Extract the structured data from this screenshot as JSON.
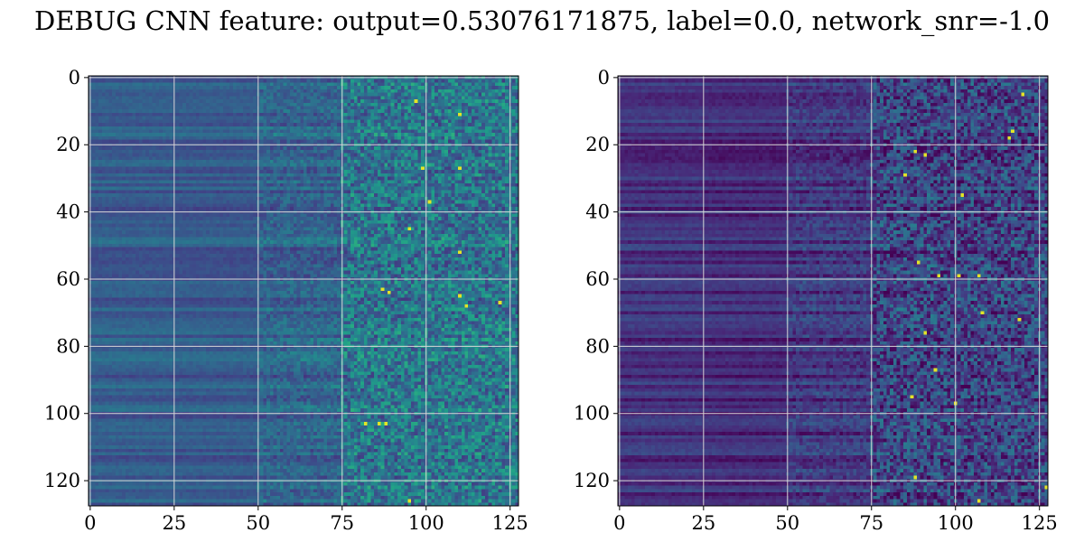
{
  "figure": {
    "title": "DEBUG CNN feature: output=0.53076171875, label=0.0, network_snr=-1.0"
  },
  "colormap": {
    "name": "viridis",
    "stops": [
      "#440154",
      "#482878",
      "#3e4989",
      "#31688e",
      "#26828e",
      "#1f9e89",
      "#35b779",
      "#6ece58",
      "#b5de2b",
      "#fde725"
    ]
  },
  "gridline_color": "#d8d8d8",
  "chart_data": [
    {
      "type": "heatmap",
      "panel": "left",
      "title": "",
      "xlabel": "",
      "ylabel": "",
      "rows": 128,
      "cols": 128,
      "xlim": [
        -0.5,
        127.5
      ],
      "ylim": [
        127.5,
        -0.5
      ],
      "xticks": [
        0,
        25,
        50,
        75,
        100,
        125
      ],
      "yticks": [
        0,
        20,
        40,
        60,
        80,
        100,
        120
      ],
      "grid": true,
      "colormap": "viridis",
      "column_band_mean": [
        {
          "cols": [
            0,
            25
          ],
          "mean": 0.3
        },
        {
          "cols": [
            25,
            50
          ],
          "mean": 0.29
        },
        {
          "cols": [
            50,
            75
          ],
          "mean": 0.33
        },
        {
          "cols": [
            75,
            128
          ],
          "mean": 0.4
        }
      ],
      "column_band_noise": [
        {
          "cols": [
            0,
            50
          ],
          "noise": 0.03
        },
        {
          "cols": [
            50,
            75
          ],
          "noise": 0.09
        },
        {
          "cols": [
            75,
            128
          ],
          "noise": 0.2
        }
      ],
      "bright_cells": [
        [
          7,
          97
        ],
        [
          11,
          110
        ],
        [
          27,
          99
        ],
        [
          27,
          110
        ],
        [
          37,
          101
        ],
        [
          45,
          95
        ],
        [
          52,
          110
        ],
        [
          63,
          87
        ],
        [
          64,
          89
        ],
        [
          65,
          110
        ],
        [
          67,
          122
        ],
        [
          68,
          112
        ],
        [
          103,
          82
        ],
        [
          103,
          86
        ],
        [
          103,
          88
        ],
        [
          126,
          95
        ]
      ]
    },
    {
      "type": "heatmap",
      "panel": "right",
      "title": "",
      "xlabel": "",
      "ylabel": "",
      "rows": 128,
      "cols": 128,
      "xlim": [
        -0.5,
        127.5
      ],
      "ylim": [
        127.5,
        -0.5
      ],
      "xticks": [
        0,
        25,
        50,
        75,
        100,
        125
      ],
      "yticks": [
        0,
        20,
        40,
        60,
        80,
        100,
        120
      ],
      "grid": true,
      "colormap": "viridis",
      "column_band_mean": [
        {
          "cols": [
            0,
            25
          ],
          "mean": 0.14
        },
        {
          "cols": [
            25,
            50
          ],
          "mean": 0.12
        },
        {
          "cols": [
            50,
            75
          ],
          "mean": 0.16
        },
        {
          "cols": [
            75,
            128
          ],
          "mean": 0.2
        }
      ],
      "column_band_noise": [
        {
          "cols": [
            0,
            50
          ],
          "noise": 0.03
        },
        {
          "cols": [
            50,
            75
          ],
          "noise": 0.08
        },
        {
          "cols": [
            75,
            128
          ],
          "noise": 0.2
        }
      ],
      "bright_cells": [
        [
          5,
          120
        ],
        [
          16,
          117
        ],
        [
          18,
          116
        ],
        [
          22,
          88
        ],
        [
          23,
          91
        ],
        [
          29,
          85
        ],
        [
          35,
          102
        ],
        [
          55,
          89
        ],
        [
          59,
          95
        ],
        [
          59,
          101
        ],
        [
          59,
          107
        ],
        [
          70,
          108
        ],
        [
          72,
          119
        ],
        [
          76,
          91
        ],
        [
          87,
          94
        ],
        [
          95,
          87
        ],
        [
          97,
          100
        ],
        [
          119,
          88
        ],
        [
          122,
          127
        ],
        [
          126,
          107
        ]
      ]
    }
  ]
}
